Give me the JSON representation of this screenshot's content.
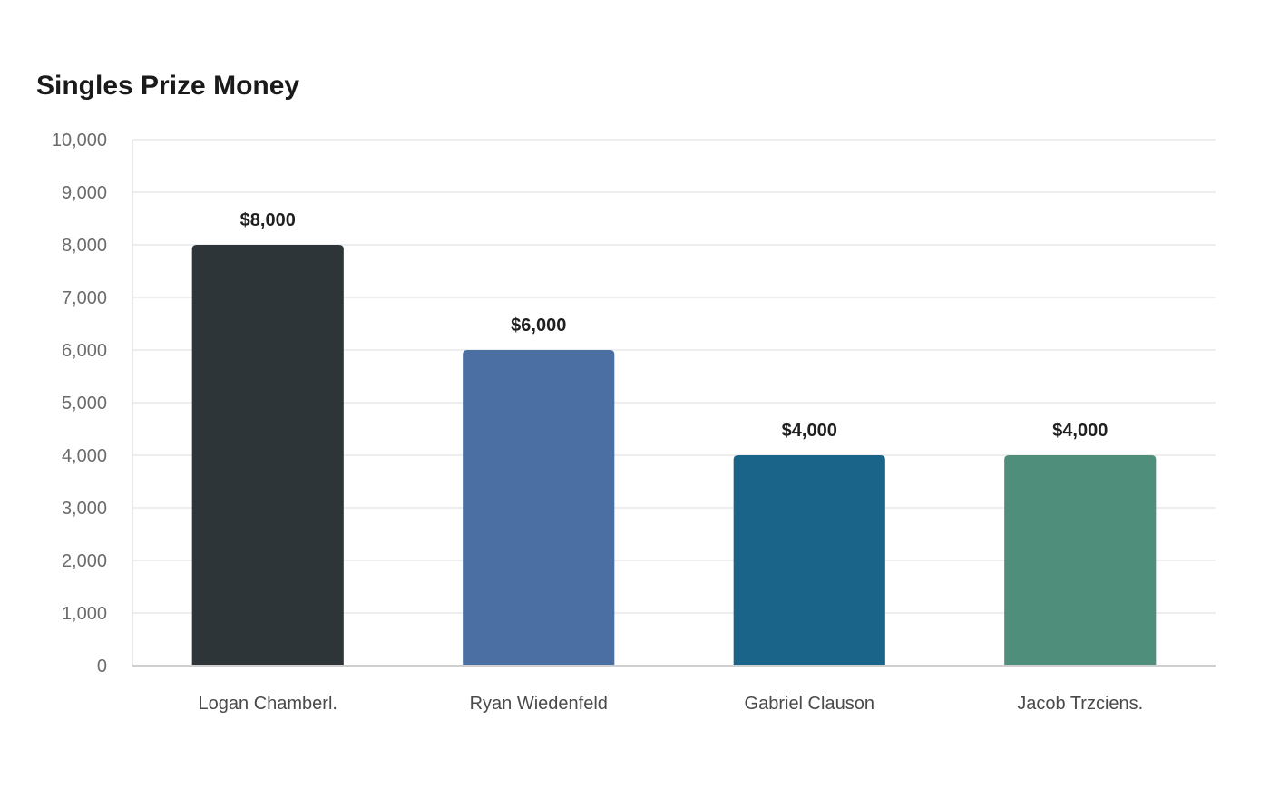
{
  "chart_data": {
    "type": "bar",
    "title": "Singles Prize Money",
    "xlabel": "",
    "ylabel": "",
    "categories": [
      "Logan Chamberl.",
      "Ryan Wiedenfeld",
      "Gabriel Clauson",
      "Jacob Trzciens."
    ],
    "values": [
      8000,
      6000,
      4000,
      4000
    ],
    "data_labels": [
      "$8,000",
      "$6,000",
      "$4,000",
      "$4,000"
    ],
    "bar_colors": [
      "#2e3538",
      "#4b6fa3",
      "#1a6389",
      "#4f8e7b"
    ],
    "ylim": [
      0,
      10000
    ],
    "yticks": [
      0,
      1000,
      2000,
      3000,
      4000,
      5000,
      6000,
      7000,
      8000,
      9000,
      10000
    ],
    "ytick_labels": [
      "0",
      "1,000",
      "2,000",
      "3,000",
      "4,000",
      "5,000",
      "6,000",
      "7,000",
      "8,000",
      "9,000",
      "10,000"
    ],
    "grid": true,
    "legend": "none"
  }
}
